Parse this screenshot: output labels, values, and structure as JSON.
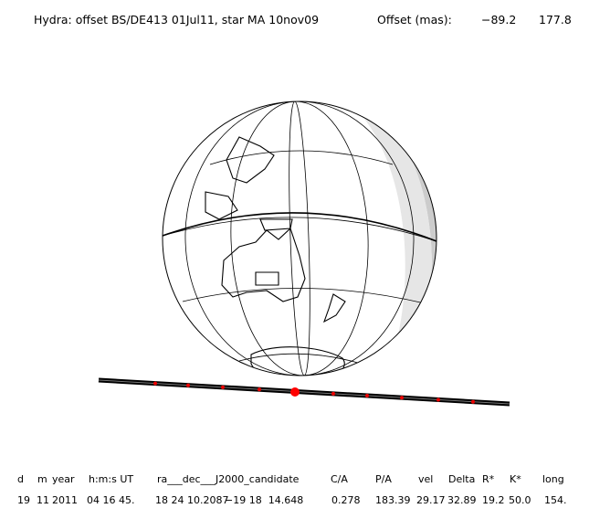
{
  "header": {
    "title": "Hydra: offset BS/DE413 01Jul11, star MA 10nov09",
    "offset_label": "Offset (mas):",
    "offset_values": [
      "−89.2",
      "177.8"
    ]
  },
  "table": {
    "columns": [
      "d",
      "m",
      "year",
      "h:m:s UT",
      "ra___dec___J2000_candidate",
      "C/A",
      "P/A",
      "vel",
      "Delta",
      "R*",
      "K*",
      "long"
    ],
    "rows": [
      [
        "19",
        "11",
        "2011",
        "04 16 45.",
        "18 24 10.2087",
        "−19 18  14.648",
        "0.278",
        "183.39",
        "29.17",
        "32.89",
        "19.2",
        "50.0",
        "154."
      ]
    ]
  }
}
